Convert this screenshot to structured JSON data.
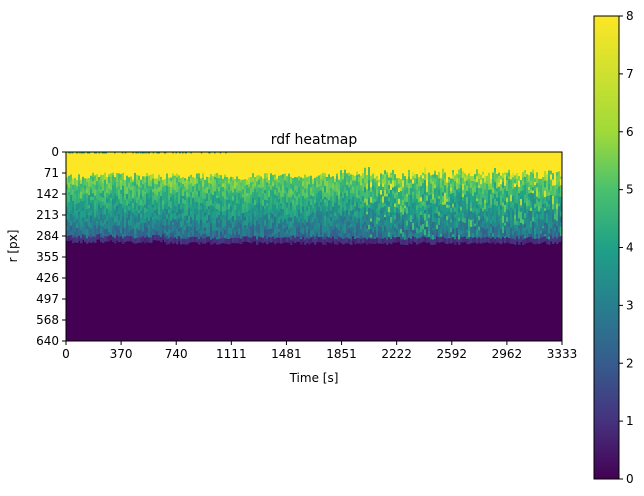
{
  "chart_data": {
    "type": "heatmap",
    "title": "rdf heatmap",
    "xlabel": "Time [s]",
    "ylabel": "r [px]",
    "x_ticks": [
      "0",
      "370",
      "740",
      "1111",
      "1481",
      "1851",
      "2222",
      "2592",
      "2962",
      "3333"
    ],
    "y_ticks": [
      "0",
      "71",
      "142",
      "213",
      "284",
      "355",
      "426",
      "497",
      "568",
      "640"
    ],
    "xlim": [
      0,
      3333
    ],
    "ylim": [
      640,
      0
    ],
    "colormap": "viridis",
    "colorbar": {
      "vmin": 0,
      "vmax": 8,
      "ticks": [
        "0",
        "1",
        "2",
        "3",
        "4",
        "5",
        "6",
        "7",
        "8"
      ]
    },
    "regions": [
      {
        "r_range": [
          0,
          90
        ],
        "value_range": [
          8,
          8
        ]
      },
      {
        "r_range": [
          90,
          290
        ],
        "value_range": [
          2,
          6.5
        ]
      },
      {
        "r_range": [
          290,
          640
        ],
        "value_range": [
          0,
          0.3
        ]
      }
    ]
  }
}
